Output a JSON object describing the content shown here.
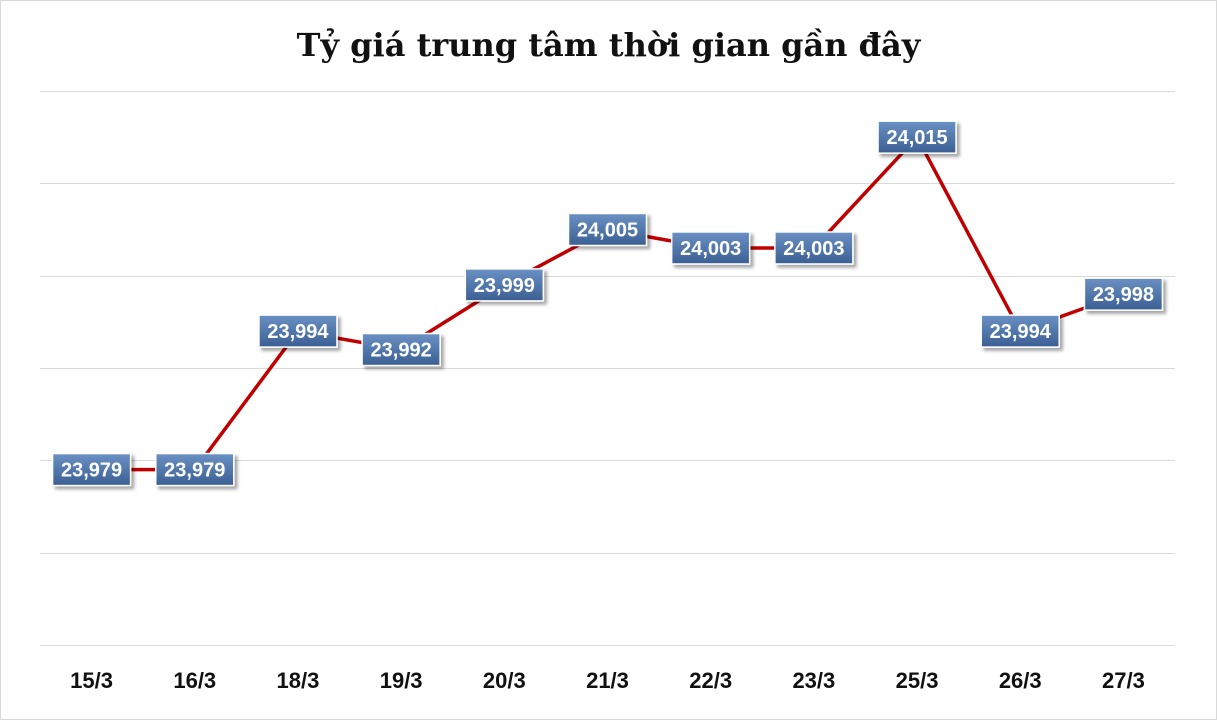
{
  "chart_data": {
    "type": "line",
    "title": "Tỷ giá trung tâm thời gian gần đây",
    "categories": [
      "15/3",
      "16/3",
      "18/3",
      "19/3",
      "20/3",
      "21/3",
      "22/3",
      "23/3",
      "25/3",
      "26/3",
      "27/3"
    ],
    "series": [
      {
        "values": [
          23979,
          23979,
          23994,
          23992,
          23999,
          24005,
          24003,
          24003,
          24015,
          23994,
          23998
        ],
        "labels": [
          "23,979",
          "23,979",
          "23,994",
          "23,992",
          "23,999",
          "24,005",
          "24,003",
          "24,003",
          "24,015",
          "23,994",
          "23,998"
        ],
        "color": "#c00000"
      }
    ],
    "ylim": [
      23960,
      24020
    ],
    "grid": true,
    "label_box_color": "#4a72a8"
  }
}
